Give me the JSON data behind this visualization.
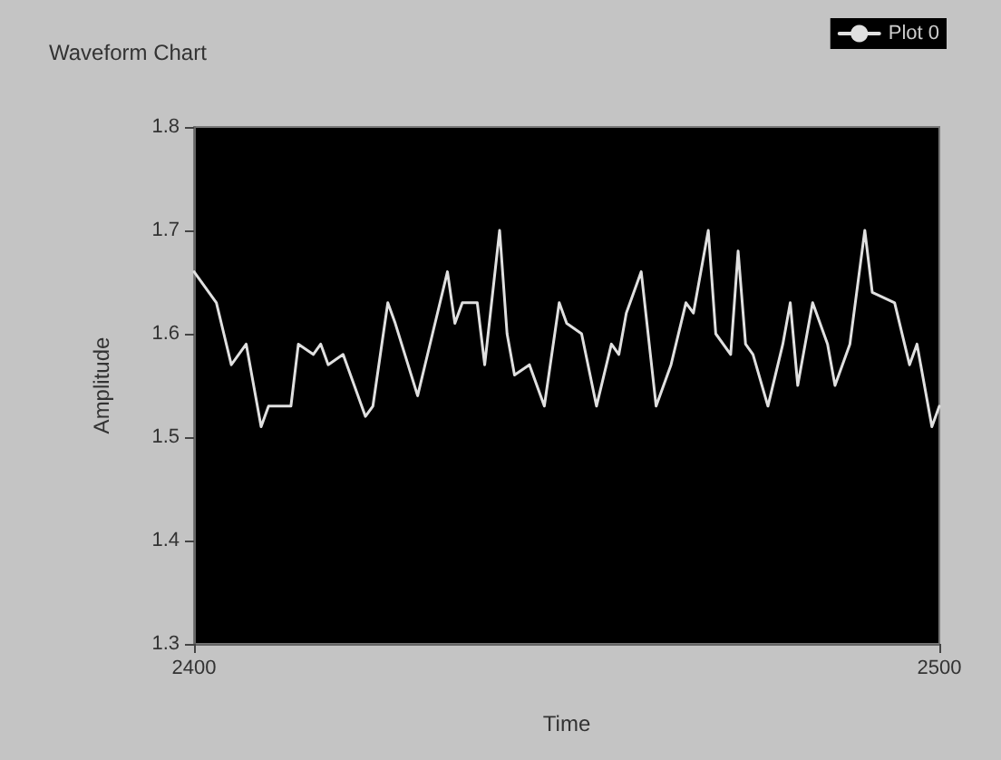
{
  "chart_data": {
    "type": "line",
    "title": "Waveform Chart",
    "xlabel": "Time",
    "ylabel": "Amplitude",
    "xlim": [
      2400,
      2500
    ],
    "xticks": [
      2400,
      2500
    ],
    "ylim": [
      1.3,
      1.8
    ],
    "yticks": [
      1.3,
      1.4,
      1.5,
      1.6,
      1.7,
      1.8
    ],
    "grid": false,
    "legend": "top right",
    "marker": "none",
    "line_style": "solid",
    "series": [
      {
        "name": "Plot 0",
        "color": "#e0e0e0",
        "x": [
          2400,
          2403,
          2404,
          2405,
          2407,
          2409,
          2410,
          2413,
          2414,
          2416,
          2417,
          2418,
          2420,
          2423,
          2424,
          2426,
          2427,
          2430,
          2432,
          2434,
          2435,
          2436,
          2438,
          2439,
          2441,
          2442,
          2443,
          2445,
          2446,
          2447,
          2449,
          2450,
          2452,
          2454,
          2456,
          2457,
          2458,
          2460,
          2462,
          2464,
          2466,
          2467,
          2469,
          2470,
          2472,
          2473,
          2474,
          2475,
          2477,
          2479,
          2480,
          2481,
          2483,
          2485,
          2486,
          2488,
          2490,
          2491,
          2494,
          2496,
          2497,
          2499,
          2500
        ],
        "values": [
          1.66,
          1.63,
          1.6,
          1.57,
          1.59,
          1.51,
          1.53,
          1.53,
          1.59,
          1.58,
          1.59,
          1.57,
          1.58,
          1.52,
          1.53,
          1.63,
          1.61,
          1.54,
          1.6,
          1.66,
          1.61,
          1.63,
          1.63,
          1.57,
          1.7,
          1.6,
          1.56,
          1.57,
          1.55,
          1.53,
          1.63,
          1.61,
          1.6,
          1.53,
          1.59,
          1.58,
          1.62,
          1.66,
          1.53,
          1.57,
          1.63,
          1.62,
          1.7,
          1.6,
          1.58,
          1.68,
          1.59,
          1.58,
          1.53,
          1.59,
          1.63,
          1.55,
          1.63,
          1.59,
          1.55,
          1.59,
          1.7,
          1.64,
          1.63,
          1.57,
          1.59,
          1.51,
          1.53
        ]
      }
    ]
  }
}
